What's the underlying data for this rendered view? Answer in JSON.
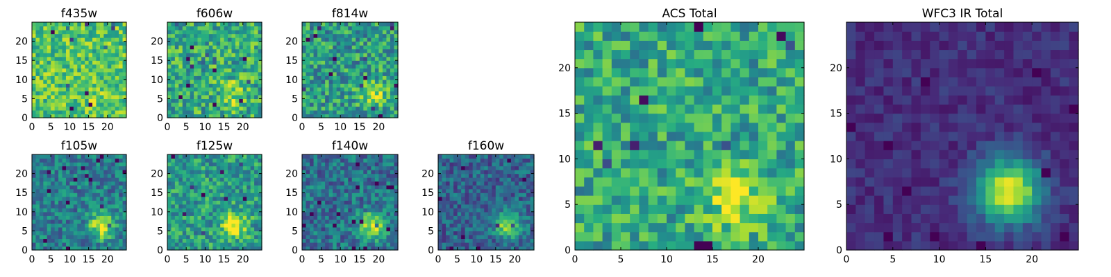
{
  "chart_data": [
    {
      "type": "heatmap",
      "title": "f435w",
      "x_ticks": [
        0,
        5,
        10,
        15,
        20
      ],
      "y_ticks": [
        0,
        5,
        10,
        15,
        20
      ],
      "xlim": [
        0,
        25
      ],
      "ylim": [
        0,
        25
      ],
      "grid_size": 25,
      "colormap": "viridis",
      "source_center": [
        17,
        6
      ],
      "source_strength": 0.1,
      "background_level": 0.72,
      "noise_amplitude": 0.22,
      "seed": 11
    },
    {
      "type": "heatmap",
      "title": "f606w",
      "x_ticks": [
        0,
        5,
        10,
        15,
        20
      ],
      "y_ticks": [
        0,
        5,
        10,
        15,
        20
      ],
      "xlim": [
        0,
        25
      ],
      "ylim": [
        0,
        25
      ],
      "grid_size": 25,
      "colormap": "viridis",
      "source_center": [
        17,
        6
      ],
      "source_strength": 0.25,
      "background_level": 0.62,
      "noise_amplitude": 0.25,
      "seed": 23
    },
    {
      "type": "heatmap",
      "title": "f814w",
      "x_ticks": [
        0,
        5,
        10,
        15,
        20
      ],
      "y_ticks": [
        0,
        5,
        10,
        15,
        20
      ],
      "xlim": [
        0,
        25
      ],
      "ylim": [
        0,
        25
      ],
      "grid_size": 25,
      "colormap": "viridis",
      "source_center": [
        18,
        6
      ],
      "source_strength": 0.35,
      "background_level": 0.55,
      "noise_amplitude": 0.25,
      "seed": 37
    },
    {
      "type": "heatmap",
      "title": "f105w",
      "x_ticks": [
        0,
        5,
        10,
        15,
        20
      ],
      "y_ticks": [
        0,
        5,
        10,
        15,
        20
      ],
      "xlim": [
        0,
        25
      ],
      "ylim": [
        0,
        25
      ],
      "grid_size": 25,
      "colormap": "viridis",
      "source_center": [
        18,
        6
      ],
      "source_strength": 0.55,
      "background_level": 0.42,
      "noise_amplitude": 0.2,
      "seed": 41
    },
    {
      "type": "heatmap",
      "title": "f125w",
      "x_ticks": [
        0,
        5,
        10,
        15,
        20
      ],
      "y_ticks": [
        0,
        5,
        10,
        15,
        20
      ],
      "xlim": [
        0,
        25
      ],
      "ylim": [
        0,
        25
      ],
      "grid_size": 25,
      "colormap": "viridis",
      "source_center": [
        17,
        6
      ],
      "source_strength": 0.45,
      "background_level": 0.55,
      "noise_amplitude": 0.22,
      "seed": 53
    },
    {
      "type": "heatmap",
      "title": "f140w",
      "x_ticks": [
        0,
        5,
        10,
        15,
        20
      ],
      "y_ticks": [
        0,
        5,
        10,
        15,
        20
      ],
      "xlim": [
        0,
        25
      ],
      "ylim": [
        0,
        25
      ],
      "grid_size": 25,
      "colormap": "viridis",
      "source_center": [
        18,
        6
      ],
      "source_strength": 0.55,
      "background_level": 0.38,
      "noise_amplitude": 0.2,
      "seed": 67
    },
    {
      "type": "heatmap",
      "title": "f160w",
      "x_ticks": [
        0,
        5,
        10,
        15,
        20
      ],
      "y_ticks": [
        0,
        5,
        10,
        15,
        20
      ],
      "xlim": [
        0,
        25
      ],
      "ylim": [
        0,
        25
      ],
      "grid_size": 25,
      "colormap": "viridis",
      "source_center": [
        18,
        6
      ],
      "source_strength": 0.55,
      "background_level": 0.32,
      "noise_amplitude": 0.18,
      "seed": 79
    },
    {
      "type": "heatmap",
      "title": "ACS Total",
      "x_ticks": [
        0,
        5,
        10,
        15,
        20
      ],
      "y_ticks": [
        0,
        5,
        10,
        15,
        20
      ],
      "xlim": [
        0,
        25
      ],
      "ylim": [
        0,
        25
      ],
      "grid_size": 25,
      "colormap": "viridis",
      "source_center": [
        17,
        5
      ],
      "source_strength": 0.3,
      "background_level": 0.6,
      "noise_amplitude": 0.22,
      "seed": 97
    },
    {
      "type": "heatmap",
      "title": "WFC3 IR Total",
      "x_ticks": [
        0,
        5,
        10,
        15,
        20
      ],
      "y_ticks": [
        0,
        5,
        10,
        15,
        20
      ],
      "xlim": [
        0,
        25
      ],
      "ylim": [
        0,
        25
      ],
      "grid_size": 25,
      "colormap": "viridis",
      "source_center": [
        17,
        6
      ],
      "source_strength": 0.85,
      "background_level": 0.14,
      "noise_amplitude": 0.08,
      "seed": 131
    }
  ]
}
